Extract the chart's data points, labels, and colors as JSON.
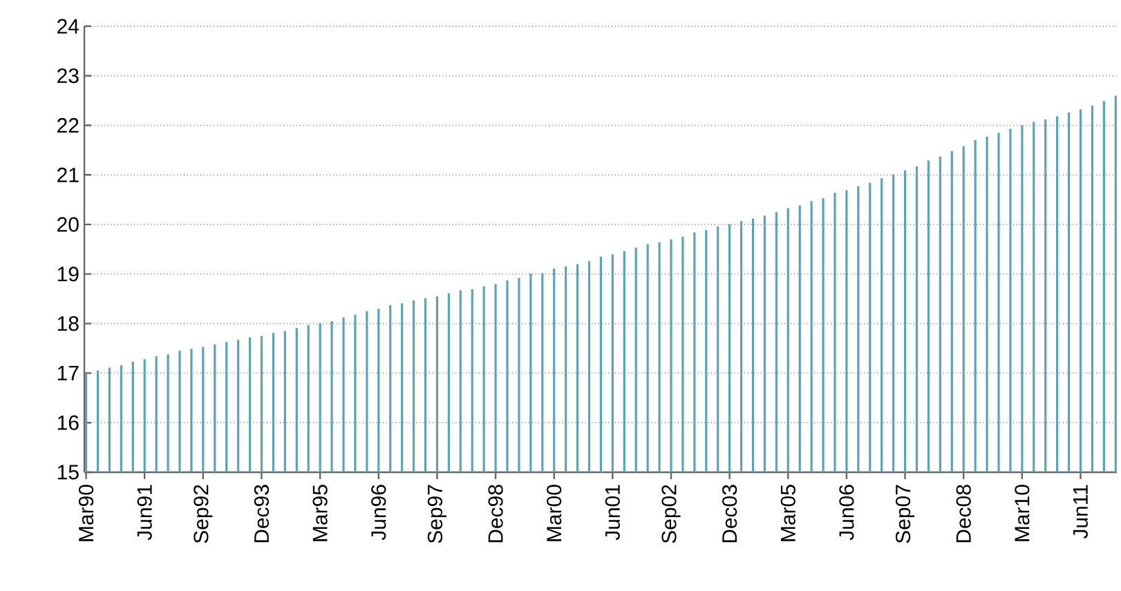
{
  "chart_data": {
    "type": "bar",
    "color": "#5aa3b8",
    "categories": [
      "Mar90",
      null,
      null,
      null,
      null,
      "Jun91",
      null,
      null,
      null,
      null,
      "Sep92",
      null,
      null,
      null,
      null,
      "Dec93",
      null,
      null,
      null,
      null,
      "Mar95",
      null,
      null,
      null,
      null,
      "Jun96",
      null,
      null,
      null,
      null,
      "Sep97",
      null,
      null,
      null,
      null,
      "Dec98",
      null,
      null,
      null,
      null,
      "Mar00",
      null,
      null,
      null,
      null,
      "Jun01",
      null,
      null,
      null,
      null,
      "Sep02",
      null,
      null,
      null,
      null,
      "Dec03",
      null,
      null,
      null,
      null,
      "Mar05",
      null,
      null,
      null,
      null,
      "Jun06",
      null,
      null,
      null,
      null,
      "Sep07",
      null,
      null,
      null,
      null,
      "Dec08",
      null,
      null,
      null,
      null,
      "Mar10",
      null,
      null,
      null,
      null,
      "Jun11",
      null,
      null,
      null
    ],
    "values": [
      17.0,
      17.05,
      17.11,
      17.16,
      17.23,
      17.28,
      17.34,
      17.38,
      17.45,
      17.49,
      17.53,
      17.58,
      17.63,
      17.67,
      17.72,
      17.75,
      17.81,
      17.85,
      17.91,
      17.97,
      18.01,
      18.05,
      18.12,
      18.18,
      18.25,
      18.3,
      18.37,
      18.41,
      18.47,
      18.51,
      18.55,
      18.61,
      18.67,
      18.69,
      18.75,
      18.8,
      18.87,
      18.92,
      19.01,
      19.02,
      19.11,
      19.15,
      19.2,
      19.26,
      19.35,
      19.4,
      19.46,
      19.53,
      19.6,
      19.64,
      19.7,
      19.75,
      19.84,
      19.89,
      19.96,
      20.0,
      20.07,
      20.12,
      20.18,
      20.25,
      20.33,
      20.38,
      20.47,
      20.53,
      20.64,
      20.69,
      20.77,
      20.84,
      20.93,
      21.01,
      21.09,
      21.17,
      21.29,
      21.37,
      21.48,
      21.58,
      21.7,
      21.77,
      21.85,
      21.93,
      22.0,
      22.07,
      22.12,
      22.18,
      22.26,
      22.32,
      22.4,
      22.49,
      22.6
    ],
    "ylim": [
      15,
      24
    ],
    "yticks": [
      15,
      16,
      17,
      18,
      19,
      20,
      21,
      22,
      23,
      24
    ],
    "grid": "y"
  }
}
